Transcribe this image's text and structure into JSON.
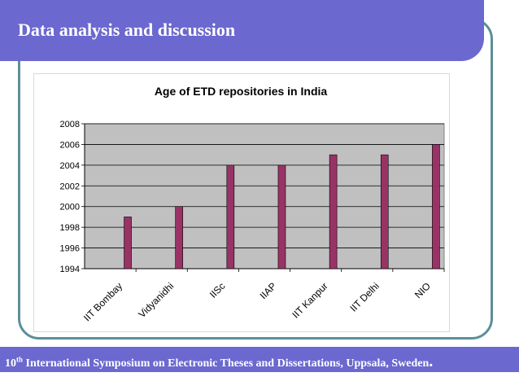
{
  "slide": {
    "title": "Data analysis and discussion",
    "footer": {
      "ordinal": "10",
      "ordinal_suffix": "th",
      "text": " International Symposium on Electronic Theses and Dissertations, Uppsala, Sweden",
      "end_mark": "."
    }
  },
  "colors": {
    "title_bar": "#6b68cf",
    "frame": "#5b8f99",
    "plot_background": "#c0c0c0",
    "bar_fill": "#993366"
  },
  "chart_data": {
    "type": "bar",
    "title": "Age of ETD repositories in India",
    "xlabel": "",
    "ylabel": "",
    "categories": [
      "IIT Bombay",
      "Vidyanidhi",
      "IISc",
      "IIAP",
      "IIT Kanpur",
      "IIT Delhi",
      "NIO"
    ],
    "values": [
      1999,
      2000,
      2004,
      2004,
      2005,
      2005,
      2006
    ],
    "ylim": [
      1994,
      2008
    ],
    "yticks": [
      1994,
      1996,
      1998,
      2000,
      2002,
      2004,
      2006,
      2008
    ],
    "grid": true,
    "legend": "none"
  }
}
